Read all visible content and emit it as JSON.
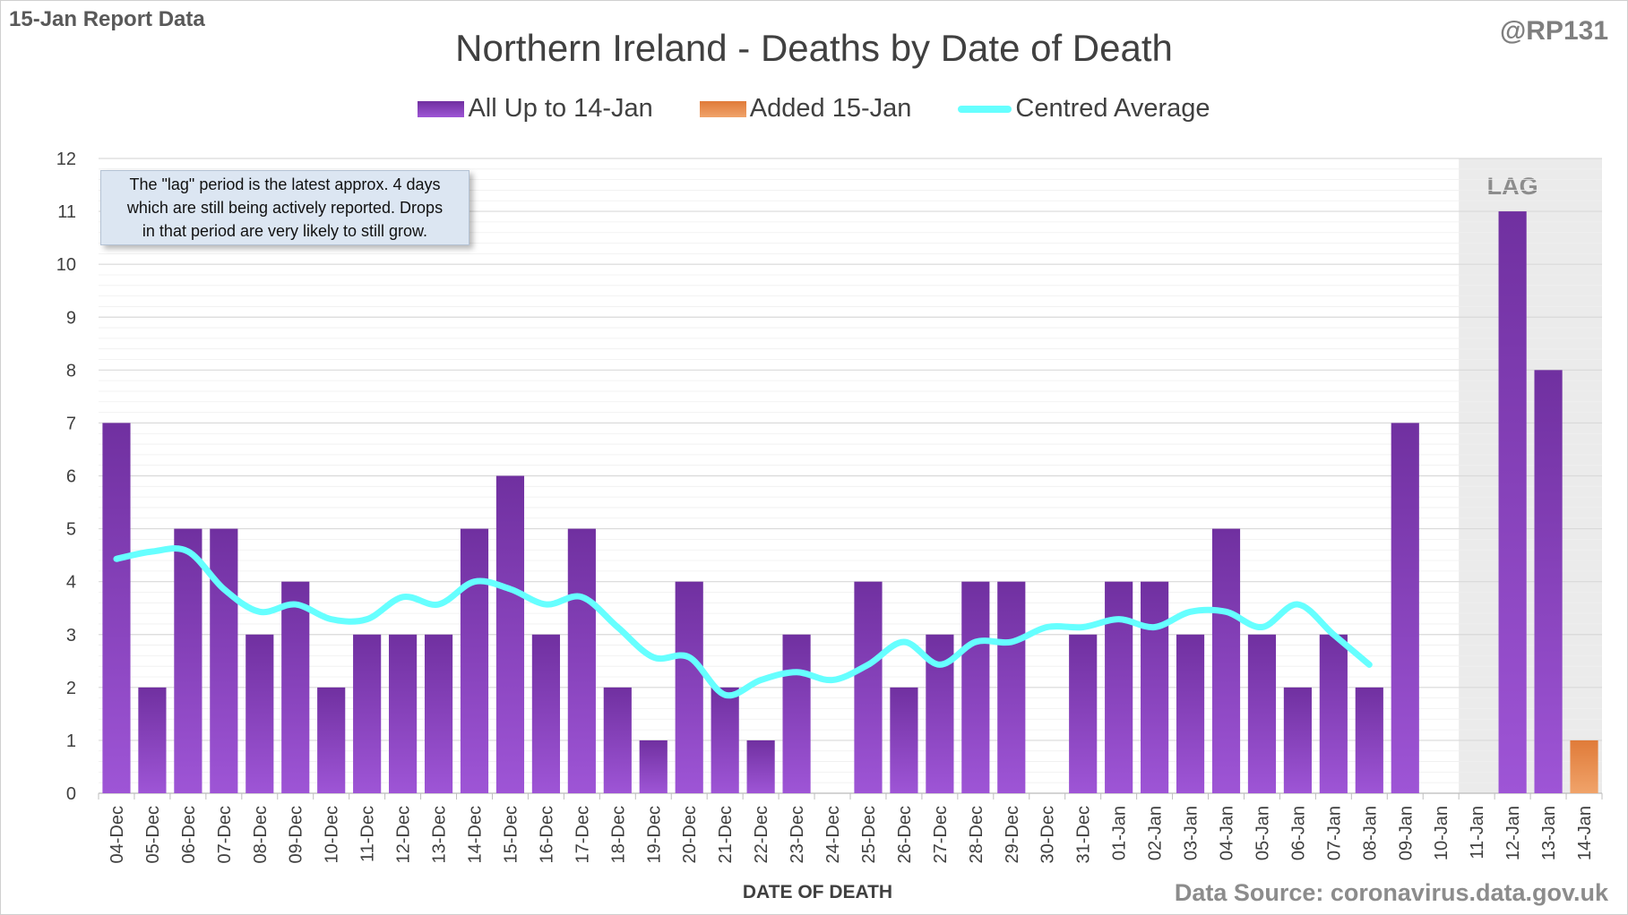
{
  "report_label": "15-Jan Report Data",
  "author": "@RP131",
  "source": "Data Source: coronavirus.data.gov.uk",
  "note": {
    "lines": [
      "The \"lag\" period is the latest approx. 4 days",
      "which are still being actively reported.  Drops",
      "in that period are very likely to still grow."
    ]
  },
  "lag_label": "LAG",
  "colors": {
    "bar_main": "#7030a0",
    "bar_main_light": "#9e55d6",
    "bar_added": "#e07b39",
    "bar_added_light": "#f0a36a",
    "line": "#66ffff",
    "lag_shade": "#ebebeb",
    "grid": "#d9d9d9"
  },
  "chart_data": {
    "type": "bar",
    "title": "Northern Ireland - Deaths by Date of Death",
    "xlabel": "DATE OF DEATH",
    "ylabel": "",
    "ylim": [
      0,
      12
    ],
    "yticks": [
      0,
      1,
      2,
      3,
      4,
      5,
      6,
      7,
      8,
      9,
      10,
      11,
      12
    ],
    "grid": true,
    "legend_position": "top",
    "stacked": true,
    "categories": [
      "04-Dec",
      "05-Dec",
      "06-Dec",
      "07-Dec",
      "08-Dec",
      "09-Dec",
      "10-Dec",
      "11-Dec",
      "12-Dec",
      "13-Dec",
      "14-Dec",
      "15-Dec",
      "16-Dec",
      "17-Dec",
      "18-Dec",
      "19-Dec",
      "20-Dec",
      "21-Dec",
      "22-Dec",
      "23-Dec",
      "24-Dec",
      "25-Dec",
      "26-Dec",
      "27-Dec",
      "28-Dec",
      "29-Dec",
      "30-Dec",
      "31-Dec",
      "01-Jan",
      "02-Jan",
      "03-Jan",
      "04-Jan",
      "05-Jan",
      "06-Jan",
      "07-Jan",
      "08-Jan",
      "09-Jan",
      "10-Jan",
      "11-Jan",
      "12-Jan",
      "13-Jan",
      "14-Jan"
    ],
    "lag_start_category": "11-Jan",
    "lag_end_category": "14-Jan",
    "series": [
      {
        "name": "All Up to 14-Jan",
        "kind": "bar",
        "values": [
          7,
          2,
          5,
          5,
          3,
          4,
          2,
          3,
          3,
          3,
          5,
          6,
          3,
          5,
          2,
          1,
          4,
          2,
          1,
          3,
          0,
          4,
          2,
          3,
          4,
          4,
          0,
          3,
          4,
          4,
          3,
          5,
          3,
          2,
          3,
          2,
          7,
          0,
          0,
          11,
          8,
          0
        ]
      },
      {
        "name": "Added 15-Jan",
        "kind": "bar",
        "values": [
          0,
          0,
          0,
          0,
          0,
          0,
          0,
          0,
          0,
          0,
          0,
          0,
          0,
          0,
          0,
          0,
          0,
          0,
          0,
          0,
          0,
          0,
          0,
          0,
          0,
          0,
          0,
          0,
          0,
          0,
          0,
          0,
          0,
          0,
          0,
          0,
          0,
          0,
          0,
          0,
          0,
          1
        ]
      },
      {
        "name": "Centred Average",
        "kind": "line",
        "values": [
          4.43,
          4.57,
          4.57,
          3.86,
          3.43,
          3.57,
          3.29,
          3.29,
          3.71,
          3.57,
          4.0,
          3.86,
          3.57,
          3.71,
          3.14,
          2.57,
          2.57,
          1.86,
          2.14,
          2.29,
          2.14,
          2.43,
          2.86,
          2.43,
          2.86,
          2.86,
          3.14,
          3.14,
          3.29,
          3.14,
          3.43,
          3.43,
          3.14,
          3.57,
          3.0,
          2.43,
          null,
          null,
          null,
          null,
          null,
          null
        ]
      }
    ]
  }
}
